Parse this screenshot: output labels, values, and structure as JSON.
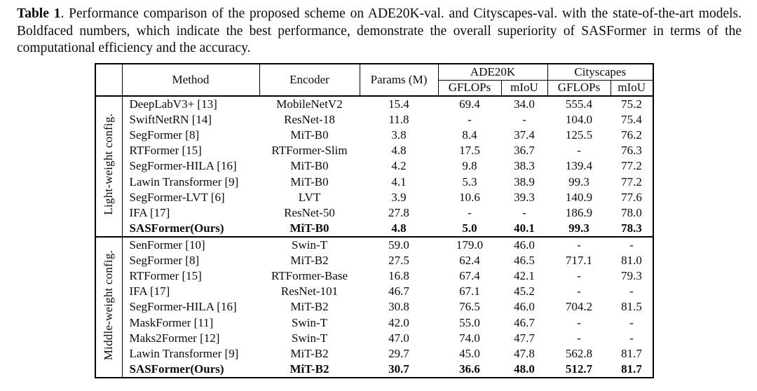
{
  "caption": {
    "label": "Table 1",
    "text": ". Performance comparison of the proposed scheme on ADE20K-val. and Cityscapes-val. with the state-of-the-art models. Boldfaced numbers, which indicate the best performance, demonstrate the overall superiority of SASFormer in terms of the computational efficiency and the accuracy."
  },
  "table": {
    "headers": {
      "method": "Method",
      "encoder": "Encoder",
      "params": "Params (M)",
      "ade20k": "ADE20K",
      "cityscapes": "Cityscapes",
      "gflops": "GFLOPs",
      "miou": "mIoU"
    },
    "missing_value": "-",
    "sections": [
      {
        "label": "Light-weight config.",
        "rows": [
          {
            "method": "DeepLabV3+ [13]",
            "encoder": "MobileNetV2",
            "params": "15.4",
            "ade_gflops": "69.4",
            "ade_miou": "34.0",
            "city_gflops": "555.4",
            "city_miou": "75.2",
            "bold": false
          },
          {
            "method": "SwiftNetRN [14]",
            "encoder": "ResNet-18",
            "params": "11.8",
            "ade_gflops": "-",
            "ade_miou": "-",
            "city_gflops": "104.0",
            "city_miou": "75.4",
            "bold": false
          },
          {
            "method": "SegFormer [8]",
            "encoder": "MiT-B0",
            "params": "3.8",
            "ade_gflops": "8.4",
            "ade_miou": "37.4",
            "city_gflops": "125.5",
            "city_miou": "76.2",
            "bold": false
          },
          {
            "method": "RTFormer [15]",
            "encoder": "RTFormer-Slim",
            "params": "4.8",
            "ade_gflops": "17.5",
            "ade_miou": "36.7",
            "city_gflops": "-",
            "city_miou": "76.3",
            "bold": false
          },
          {
            "method": "SegFormer-HILA [16]",
            "encoder": "MiT-B0",
            "params": "4.2",
            "ade_gflops": "9.8",
            "ade_miou": "38.3",
            "city_gflops": "139.4",
            "city_miou": "77.2",
            "bold": false
          },
          {
            "method": "Lawin Transformer [9]",
            "encoder": "MiT-B0",
            "params": "4.1",
            "ade_gflops": "5.3",
            "ade_miou": "38.9",
            "city_gflops": "99.3",
            "city_miou": "77.2",
            "bold": false
          },
          {
            "method": "SegFormer-LVT [6]",
            "encoder": "LVT",
            "params": "3.9",
            "ade_gflops": "10.6",
            "ade_miou": "39.3",
            "city_gflops": "140.9",
            "city_miou": "77.6",
            "bold": false
          },
          {
            "method": "IFA [17]",
            "encoder": "ResNet-50",
            "params": "27.8",
            "ade_gflops": "-",
            "ade_miou": "-",
            "city_gflops": "186.9",
            "city_miou": "78.0",
            "bold": false
          },
          {
            "method": "SASFormer(Ours)",
            "encoder": "MiT-B0",
            "params": "4.8",
            "ade_gflops": "5.0",
            "ade_miou": "40.1",
            "city_gflops": "99.3",
            "city_miou": "78.3",
            "bold": true
          }
        ]
      },
      {
        "label": "Middle-weight config.",
        "rows": [
          {
            "method": "SenFormer [10]",
            "encoder": "Swin-T",
            "params": "59.0",
            "ade_gflops": "179.0",
            "ade_miou": "46.0",
            "city_gflops": "-",
            "city_miou": "-",
            "bold": false
          },
          {
            "method": "SegFormer [8]",
            "encoder": "MiT-B2",
            "params": "27.5",
            "ade_gflops": "62.4",
            "ade_miou": "46.5",
            "city_gflops": "717.1",
            "city_miou": "81.0",
            "bold": false
          },
          {
            "method": "RTFormer [15]",
            "encoder": "RTFormer-Base",
            "params": "16.8",
            "ade_gflops": "67.4",
            "ade_miou": "42.1",
            "city_gflops": "-",
            "city_miou": "79.3",
            "bold": false
          },
          {
            "method": "IFA [17]",
            "encoder": "ResNet-101",
            "params": "46.7",
            "ade_gflops": "67.1",
            "ade_miou": "45.2",
            "city_gflops": "-",
            "city_miou": "-",
            "bold": false
          },
          {
            "method": "SegFormer-HILA [16]",
            "encoder": "MiT-B2",
            "params": "30.8",
            "ade_gflops": "76.5",
            "ade_miou": "46.0",
            "city_gflops": "704.2",
            "city_miou": "81.5",
            "bold": false
          },
          {
            "method": "MaskFormer [11]",
            "encoder": "Swin-T",
            "params": "42.0",
            "ade_gflops": "55.0",
            "ade_miou": "46.7",
            "city_gflops": "-",
            "city_miou": "-",
            "bold": false
          },
          {
            "method": "Maks2Former [12]",
            "encoder": "Swin-T",
            "params": "47.0",
            "ade_gflops": "74.0",
            "ade_miou": "47.7",
            "city_gflops": "-",
            "city_miou": "-",
            "bold": false
          },
          {
            "method": "Lawin Transformer [9]",
            "encoder": "MiT-B2",
            "params": "29.7",
            "ade_gflops": "45.0",
            "ade_miou": "47.8",
            "city_gflops": "562.8",
            "city_miou": "81.7",
            "bold": false
          },
          {
            "method": "SASFormer(Ours)",
            "encoder": "MiT-B2",
            "params": "30.7",
            "ade_gflops": "36.6",
            "ade_miou": "48.0",
            "city_gflops": "512.7",
            "city_miou": "81.7",
            "bold": true
          }
        ]
      }
    ]
  },
  "colors": {
    "text": "#0b0b0b",
    "border": "#000000",
    "background": "#ffffff"
  }
}
